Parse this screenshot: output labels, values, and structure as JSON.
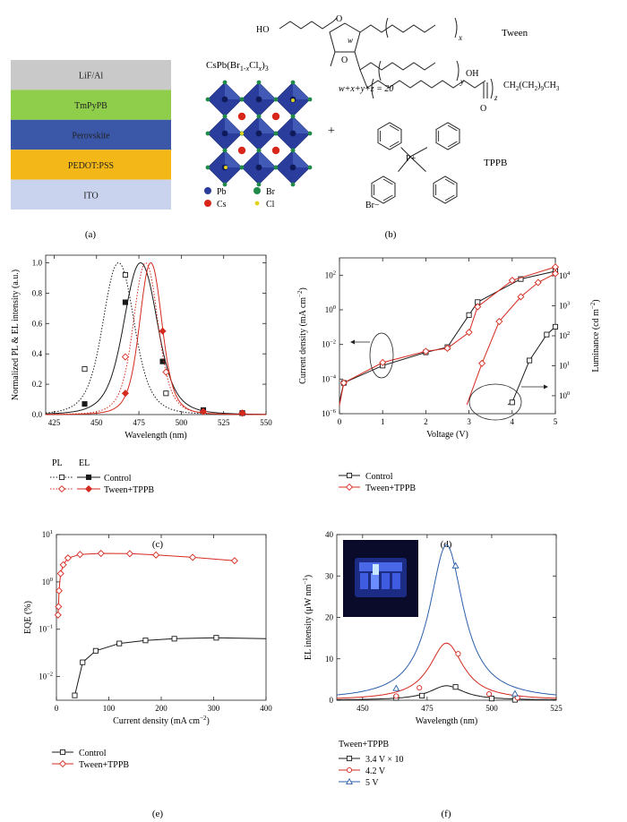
{
  "colors": {
    "control": "#1a1a1a",
    "tween": "#d42a1f",
    "v5": "#2b5fa8",
    "lif": "#c9c9c9",
    "tmpypb": "#8fce4a",
    "perovskite": "#3a57a8",
    "pedot": "#f3b817",
    "ito": "#c9d3ee",
    "pb": "#2a3d9c",
    "cs": "#d8261b",
    "br": "#1f8a4a",
    "cl": "#e3d21b"
  },
  "panel_a": {
    "label": "(a)",
    "layers": [
      {
        "name": "LiF/Al",
        "color": "#c9c9c9"
      },
      {
        "name": "TmPyPB",
        "color": "#8fce4a"
      },
      {
        "name": "Perovskite",
        "color": "#3a57a8"
      },
      {
        "name": "PEDOT:PSS",
        "color": "#f3b817"
      },
      {
        "name": "ITO",
        "color": "#c9d3ee"
      }
    ]
  },
  "panel_b": {
    "label": "(b)",
    "crystal_formula": "CsPb(Br1-xClx)3",
    "legend": [
      {
        "name": "Pb",
        "color": "#2a3d9c"
      },
      {
        "name": "Br",
        "color": "#1f8a4a"
      },
      {
        "name": "Cs",
        "color": "#d8261b"
      },
      {
        "name": "Cl",
        "color": "#e3d21b"
      }
    ],
    "plus": "+",
    "tween_name": "Tween",
    "tween_formula_sum": "w+x+y+z = 20",
    "tween_tail": "CH2(CH2)9CH3",
    "tppb_name": "TPPB",
    "tppb_anion": "Br−",
    "atoms": {
      "ho": "HO",
      "oh": "OH",
      "o": "O",
      "p_plus": "P+",
      "w": "w",
      "x": "x",
      "y": "y",
      "z": "z"
    }
  },
  "chart_data": [
    {
      "panel": "(c)",
      "type": "line",
      "xlabel": "Wavelength (nm)",
      "ylabel": "Normalized PL & EL intensity (a.u.)",
      "xlim": [
        420,
        550
      ],
      "ylim": [
        0,
        1.05
      ],
      "xticks": [
        425,
        450,
        475,
        500,
        525,
        550
      ],
      "yticks": [
        0.0,
        0.2,
        0.4,
        0.6,
        0.8,
        1.0
      ],
      "legend": {
        "pl_header": "PL",
        "el_header": "EL",
        "entries": [
          "Control",
          "Tween+TPPB"
        ]
      },
      "series": [
        {
          "name": "Control",
          "kind": "PL",
          "style": "dotted",
          "color": "#1a1a1a",
          "marker": "open-square",
          "peak": 463,
          "width": 14,
          "markers": [
            [
              443,
              0.3
            ],
            [
              467,
              0.92
            ],
            [
              491,
              0.14
            ],
            [
              536,
              0.01
            ]
          ]
        },
        {
          "name": "Control",
          "kind": "EL",
          "style": "solid",
          "color": "#1a1a1a",
          "marker": "filled-square",
          "peak": 476,
          "width": 15,
          "markers": [
            [
              443,
              0.07
            ],
            [
              467,
              0.74
            ],
            [
              489,
              0.35
            ],
            [
              513,
              0.03
            ],
            [
              536,
              0.01
            ]
          ]
        },
        {
          "name": "Tween+TPPB",
          "kind": "PL",
          "style": "dotted",
          "color": "#d42a1f",
          "marker": "open-diamond",
          "peak": 479,
          "width": 11,
          "markers": [
            [
              467,
              0.38
            ],
            [
              491,
              0.28
            ],
            [
              513,
              0.02
            ],
            [
              536,
              0.01
            ]
          ]
        },
        {
          "name": "Tween+TPPB",
          "kind": "EL",
          "style": "solid",
          "color": "#d42a1f",
          "marker": "filled-diamond",
          "peak": 482,
          "width": 10,
          "markers": [
            [
              467,
              0.14
            ],
            [
              489,
              0.55
            ],
            [
              513,
              0.02
            ],
            [
              536,
              0.01
            ]
          ]
        }
      ]
    },
    {
      "panel": "(d)",
      "type": "line",
      "xlabel": "Voltage (V)",
      "ylabel": "Current density (mA cm−2)",
      "y2label": "Luminance (cd m−2)",
      "xlim": [
        0,
        5
      ],
      "ylim_log": [
        -6,
        3
      ],
      "y2lim_log": [
        -0.6,
        4.6
      ],
      "xticks": [
        0,
        1,
        2,
        3,
        4,
        5
      ],
      "yticks_log": [
        -6,
        -4,
        -2,
        0,
        2
      ],
      "y2ticks_log": [
        0,
        1,
        2,
        3,
        4
      ],
      "series": [
        {
          "name": "Control",
          "quantity": "current",
          "color": "#1a1a1a",
          "points": [
            [
              0,
              5e-06
            ],
            [
              0.1,
              6e-05
            ],
            [
              1.0,
              0.0006
            ],
            [
              2.0,
              0.0035
            ],
            [
              2.5,
              0.007
            ],
            [
              3.0,
              0.5
            ],
            [
              3.2,
              2.8
            ],
            [
              4.2,
              60
            ],
            [
              5.0,
              170
            ]
          ]
        },
        {
          "name": "Tween+TPPB",
          "quantity": "current",
          "color": "#d42a1f",
          "points": [
            [
              0,
              3e-06
            ],
            [
              0.1,
              6e-05
            ],
            [
              1.0,
              0.0009
            ],
            [
              2.0,
              0.004
            ],
            [
              2.5,
              0.006
            ],
            [
              3.0,
              0.05
            ],
            [
              3.2,
              1.5
            ],
            [
              4.0,
              50
            ],
            [
              5.0,
              300
            ]
          ]
        },
        {
          "name": "Control",
          "quantity": "luminance",
          "color": "#1a1a1a",
          "points": [
            [
              3.9,
              0.5
            ],
            [
              4.0,
              0.6
            ],
            [
              4.4,
              15
            ],
            [
              4.8,
              110
            ],
            [
              5.0,
              200
            ]
          ]
        },
        {
          "name": "Tween+TPPB",
          "quantity": "luminance",
          "color": "#d42a1f",
          "points": [
            [
              2.95,
              0.5
            ],
            [
              3.3,
              12
            ],
            [
              3.7,
              300
            ],
            [
              4.2,
              2000
            ],
            [
              4.6,
              6000
            ],
            [
              5.0,
              12000
            ]
          ]
        }
      ],
      "legend": [
        "Control",
        "Tween+TPPB"
      ]
    },
    {
      "panel": "(e)",
      "type": "line",
      "xlabel": "Current density (mA cm−2)",
      "ylabel": "EQE (%)",
      "xlim": [
        0,
        400
      ],
      "ylim_log": [
        -2.5,
        1
      ],
      "xticks": [
        0,
        100,
        200,
        300,
        400
      ],
      "yticks_log": [
        -2,
        -1,
        0,
        1
      ],
      "series": [
        {
          "name": "Control",
          "color": "#1a1a1a",
          "marker": "open-square",
          "points": [
            [
              35,
              0.004
            ],
            [
              50,
              0.02
            ],
            [
              75,
              0.035
            ],
            [
              120,
              0.05
            ],
            [
              170,
              0.058
            ],
            [
              225,
              0.063
            ],
            [
              305,
              0.066
            ],
            [
              400,
              0.063
            ]
          ]
        },
        {
          "name": "Tween+TPPB",
          "color": "#d42a1f",
          "marker": "open-diamond",
          "points": [
            [
              3,
              0.2
            ],
            [
              4,
              0.3
            ],
            [
              5,
              0.65
            ],
            [
              8,
              1.5
            ],
            [
              13,
              2.3
            ],
            [
              22,
              3.2
            ],
            [
              45,
              3.8
            ],
            [
              85,
              4.0
            ],
            [
              140,
              3.95
            ],
            [
              190,
              3.7
            ],
            [
              260,
              3.3
            ],
            [
              340,
              2.8
            ]
          ]
        }
      ],
      "legend": [
        "Control",
        "Tween+TPPB"
      ]
    },
    {
      "panel": "(f)",
      "type": "line",
      "xlabel": "Wavelength (nm)",
      "ylabel": "EL intensity (μW nm−1)",
      "xlim": [
        440,
        525
      ],
      "ylim": [
        0,
        40
      ],
      "xticks": [
        450,
        475,
        500,
        525
      ],
      "yticks": [
        0,
        10,
        20,
        30,
        40
      ],
      "legend_title": "Tween+TPPB",
      "series": [
        {
          "name": "3.4 V × 10",
          "color": "#1a1a1a",
          "marker": "open-square",
          "peak": 482.5,
          "amplitude": 3.5,
          "hwhm": 8,
          "markers": [
            [
              463,
              0.55
            ],
            [
              473,
              1.1
            ],
            [
              486,
              3.2
            ],
            [
              500,
              0.4
            ],
            [
              509,
              0.1
            ]
          ]
        },
        {
          "name": "4.2 V",
          "color": "#d42a1f",
          "marker": "open-circle",
          "peak": 482.5,
          "amplitude": 13.8,
          "hwhm": 8,
          "markers": [
            [
              463,
              1.0
            ],
            [
              472,
              3.0
            ],
            [
              487,
              11.2
            ],
            [
              499,
              1.5
            ],
            [
              510,
              0.6
            ]
          ]
        },
        {
          "name": "5 V",
          "color": "#2b5fa8",
          "marker": "open-triangle",
          "peak": 482.5,
          "amplitude": 37.5,
          "hwhm": 8,
          "markers": [
            [
              463,
              2.9
            ],
            [
              486,
              32.5
            ],
            [
              509,
              1.6
            ]
          ]
        }
      ]
    }
  ]
}
